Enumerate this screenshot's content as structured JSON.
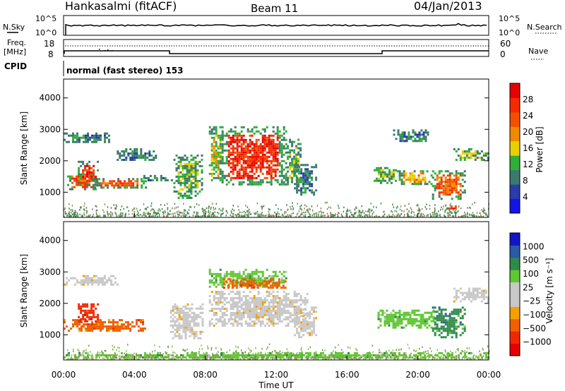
{
  "header": {
    "station": "Hankasalmi (fitACF)",
    "beam": "Beam 11",
    "date": "04/Jan/2013"
  },
  "panel_labels": {
    "nsky": "N.Sky",
    "nsearch": "N.Search",
    "freq_line1": "Freq.",
    "freq_line2": "[MHz]",
    "nave": "Nave",
    "cpid": "CPID",
    "cpid_text": "normal (fast stereo) 153"
  },
  "noise_axis": {
    "left_ticks": [
      "10^5",
      "10^0"
    ],
    "right_ticks": [
      "10^5",
      "10^0"
    ]
  },
  "freq_axis": {
    "left_ticks": [
      "18",
      "8"
    ],
    "right_ticks": [
      "60",
      "0"
    ]
  },
  "colors": {
    "power": [
      "#1414e6",
      "#2a3ca8",
      "#3c7a6e",
      "#2fae3a",
      "#e8d000",
      "#f08a00",
      "#f05000",
      "#f52a00",
      "#e60000"
    ],
    "velocity": [
      "#e60000",
      "#f02800",
      "#f06000",
      "#f5a000",
      "#c8c8c8",
      "#c8c8c8",
      "#5ec832",
      "#2f8a4a",
      "#2a5aa8",
      "#1414c8"
    ],
    "ground": "#b0b0b0",
    "noise_speckle": "#3c8a4a"
  },
  "chart_data": [
    {
      "type": "heatmap",
      "name": "Power",
      "xlabel": "",
      "ylabel": "Slant Range [km]",
      "xlim_hours": [
        0,
        24
      ],
      "ylim_km": [
        200,
        4600
      ],
      "y_ticks": [
        "1000",
        "2000",
        "3000",
        "4000"
      ],
      "colorbar_label": "Power [dB]",
      "colorbar_ticks": [
        "4",
        "8",
        "12",
        "16",
        "20",
        "24",
        "28"
      ],
      "colorbar_range_db": [
        0,
        32
      ],
      "echo_regions": [
        {
          "t0": 0.2,
          "t1": 1.8,
          "r0": 1100,
          "r1": 1600,
          "level": 24
        },
        {
          "t0": 0.8,
          "t1": 1.9,
          "r0": 1200,
          "r1": 2000,
          "level": 26
        },
        {
          "t0": 1.6,
          "t1": 4.6,
          "r0": 1150,
          "r1": 1450,
          "level": 22
        },
        {
          "t0": 4.5,
          "t1": 6.2,
          "r0": 1350,
          "r1": 1550,
          "level": 8
        },
        {
          "t0": 0.0,
          "t1": 2.6,
          "r0": 2600,
          "r1": 2900,
          "level": 6
        },
        {
          "t0": 3.0,
          "t1": 5.2,
          "r0": 2000,
          "r1": 2400,
          "level": 6
        },
        {
          "t0": 6.2,
          "t1": 7.8,
          "r0": 800,
          "r1": 2200,
          "level": 12
        },
        {
          "t0": 8.2,
          "t1": 9.0,
          "r0": 1300,
          "r1": 3100,
          "level": 16
        },
        {
          "t0": 8.8,
          "t1": 12.6,
          "r0": 1250,
          "r1": 3100,
          "level": 26
        },
        {
          "t0": 12.6,
          "t1": 13.4,
          "r0": 1200,
          "r1": 2700,
          "level": 12
        },
        {
          "t0": 13.0,
          "t1": 14.2,
          "r0": 900,
          "r1": 1900,
          "level": 8
        },
        {
          "t0": 17.5,
          "t1": 18.8,
          "r0": 1300,
          "r1": 1800,
          "level": 10
        },
        {
          "t0": 18.8,
          "t1": 20.8,
          "r0": 1250,
          "r1": 1700,
          "level": 18
        },
        {
          "t0": 18.6,
          "t1": 20.6,
          "r0": 2600,
          "r1": 3000,
          "level": 6
        },
        {
          "t0": 20.8,
          "t1": 22.6,
          "r0": 800,
          "r1": 1700,
          "level": 22
        },
        {
          "t0": 21.6,
          "t1": 22.2,
          "r0": 350,
          "r1": 650,
          "level": 28
        },
        {
          "t0": 22.0,
          "t1": 24.0,
          "r0": 2050,
          "r1": 2400,
          "level": 12
        }
      ]
    },
    {
      "type": "heatmap",
      "name": "Velocity",
      "xlabel": "Time UT",
      "ylabel": "Slant Range [km]",
      "xlim_hours": [
        0,
        24
      ],
      "ylim_km": [
        200,
        4600
      ],
      "x_ticks": [
        "00:00",
        "04:00",
        "08:00",
        "12:00",
        "16:00",
        "20:00",
        "00:00"
      ],
      "y_ticks": [
        "1000",
        "2000",
        "3000",
        "4000"
      ],
      "colorbar_label": "Velocity [m s⁻¹]",
      "colorbar_ticks": [
        "1000",
        "500",
        "100",
        "25",
        "−25",
        "−100",
        "−500",
        "−1000"
      ],
      "echo_regions": [
        {
          "t0": 0.0,
          "t1": 4.6,
          "r0": 1100,
          "r1": 1500,
          "level": 2
        },
        {
          "t0": 0.8,
          "t1": 1.9,
          "r0": 1400,
          "r1": 2000,
          "level": 1
        },
        {
          "t0": 0.0,
          "t1": 3.0,
          "r0": 2600,
          "r1": 2900,
          "level": 4
        },
        {
          "t0": 6.0,
          "t1": 7.8,
          "r0": 900,
          "r1": 2000,
          "level": 4
        },
        {
          "t0": 8.2,
          "t1": 13.8,
          "r0": 1300,
          "r1": 2400,
          "level": 4
        },
        {
          "t0": 8.2,
          "t1": 12.6,
          "r0": 2500,
          "r1": 3100,
          "level": 6
        },
        {
          "t0": 9.0,
          "t1": 12.5,
          "r0": 2500,
          "r1": 2800,
          "level": 2
        },
        {
          "t0": 13.0,
          "t1": 14.2,
          "r0": 900,
          "r1": 1900,
          "level": 4
        },
        {
          "t0": 17.6,
          "t1": 21.0,
          "r0": 1250,
          "r1": 1800,
          "level": 6
        },
        {
          "t0": 20.8,
          "t1": 22.6,
          "r0": 900,
          "r1": 1900,
          "level": 7
        },
        {
          "t0": 22.0,
          "t1": 24.0,
          "r0": 2050,
          "r1": 2500,
          "level": 4
        },
        {
          "t0": 0.0,
          "t1": 24.0,
          "r0": 250,
          "r1": 450,
          "level": 6
        }
      ]
    }
  ]
}
